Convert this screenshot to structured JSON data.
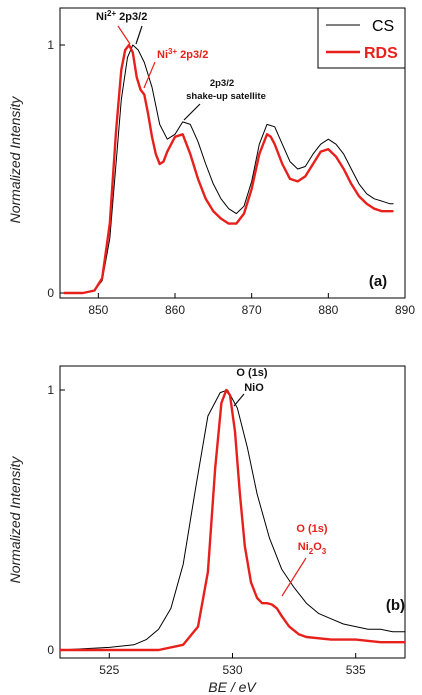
{
  "chart_data": [
    {
      "type": "line",
      "panel_label": "(a)",
      "ylabel": "Normalized Intensity",
      "xlim": [
        845,
        890
      ],
      "ylim": [
        0,
        1
      ],
      "x_ticks": [
        850,
        860,
        870,
        880,
        890
      ],
      "y_ticks": [
        0,
        1
      ],
      "legend": {
        "placement": "top-right",
        "entries": [
          "CS",
          "RDS"
        ]
      },
      "colors": {
        "CS": "#000000",
        "RDS": "#e8201c"
      },
      "series": [
        {
          "name": "CS",
          "x": [
            845.5,
            848,
            849.5,
            850.5,
            851.5,
            852.3,
            853,
            853.8,
            854.5,
            855.2,
            856,
            857,
            858,
            859,
            860,
            861,
            862,
            863,
            864,
            865,
            866,
            867,
            868,
            869,
            870,
            871,
            872,
            873,
            874,
            875,
            876,
            877,
            878,
            879,
            880,
            881,
            882,
            883,
            884,
            885,
            886,
            887,
            888,
            888.5
          ],
          "values": [
            0.0,
            0.0,
            0.01,
            0.05,
            0.22,
            0.52,
            0.78,
            0.95,
            1.0,
            0.98,
            0.93,
            0.83,
            0.68,
            0.62,
            0.64,
            0.69,
            0.68,
            0.61,
            0.52,
            0.44,
            0.38,
            0.34,
            0.32,
            0.35,
            0.45,
            0.6,
            0.68,
            0.67,
            0.6,
            0.53,
            0.5,
            0.51,
            0.56,
            0.6,
            0.62,
            0.6,
            0.56,
            0.5,
            0.44,
            0.4,
            0.38,
            0.37,
            0.36,
            0.36
          ]
        },
        {
          "name": "RDS",
          "x": [
            845.5,
            848,
            849.5,
            850.5,
            851.5,
            852.3,
            853,
            853.5,
            854,
            854.5,
            855,
            855.5,
            856,
            856.5,
            857,
            857.5,
            858,
            858.5,
            859,
            860,
            861,
            862,
            863,
            864,
            865,
            866,
            867,
            868,
            869,
            870,
            871,
            872,
            872.5,
            873,
            874,
            875,
            876,
            877,
            878,
            879,
            880,
            881,
            882,
            883,
            884,
            885,
            886,
            887,
            888,
            888.5
          ],
          "values": [
            0.0,
            0.0,
            0.01,
            0.06,
            0.28,
            0.65,
            0.9,
            0.98,
            1.0,
            0.97,
            0.87,
            0.82,
            0.8,
            0.72,
            0.63,
            0.56,
            0.52,
            0.53,
            0.57,
            0.63,
            0.64,
            0.56,
            0.46,
            0.38,
            0.33,
            0.3,
            0.28,
            0.28,
            0.32,
            0.42,
            0.56,
            0.64,
            0.63,
            0.6,
            0.52,
            0.46,
            0.45,
            0.47,
            0.52,
            0.57,
            0.58,
            0.55,
            0.5,
            0.44,
            0.39,
            0.36,
            0.34,
            0.33,
            0.33,
            0.33
          ]
        }
      ],
      "annotations": {
        "ni2_prefix": "Ni",
        "ni2_sup": "2+",
        "ni2_suffix": " 2p3/2",
        "ni3_prefix": "Ni",
        "ni3_sup": "3+",
        "ni3_suffix": " 2p3/2",
        "sat_line1": "2p3/2",
        "sat_line2": "shake-up satellite"
      }
    },
    {
      "type": "line",
      "panel_label": "(b)",
      "ylabel": "Normalized Intensity",
      "xlabel": "BE / eV",
      "xlim": [
        523,
        537
      ],
      "ylim": [
        0,
        1
      ],
      "x_ticks": [
        525,
        530,
        535
      ],
      "y_ticks": [
        0,
        1
      ],
      "colors": {
        "CS": "#000000",
        "RDS": "#e8201c"
      },
      "series": [
        {
          "name": "CS",
          "x": [
            523,
            525,
            526,
            526.5,
            527,
            527.5,
            528,
            528.5,
            529,
            529.5,
            529.8,
            530.2,
            530.6,
            531,
            531.5,
            532,
            532.5,
            533,
            533.5,
            534,
            534.5,
            535,
            535.5,
            536,
            536.5,
            537
          ],
          "values": [
            0.0,
            0.01,
            0.02,
            0.04,
            0.08,
            0.16,
            0.33,
            0.62,
            0.9,
            0.99,
            1.0,
            0.93,
            0.78,
            0.6,
            0.43,
            0.31,
            0.24,
            0.18,
            0.14,
            0.12,
            0.1,
            0.09,
            0.08,
            0.08,
            0.07,
            0.07
          ]
        },
        {
          "name": "RDS",
          "x": [
            523,
            526,
            527,
            528,
            528.6,
            529,
            529.3,
            529.55,
            529.75,
            529.9,
            530.1,
            530.3,
            530.5,
            530.75,
            531,
            531.2,
            531.4,
            531.6,
            531.8,
            532,
            532.3,
            532.7,
            533,
            534,
            535,
            536,
            537
          ],
          "values": [
            0.0,
            0.0,
            0.0,
            0.02,
            0.09,
            0.3,
            0.7,
            0.95,
            1.0,
            0.98,
            0.84,
            0.6,
            0.4,
            0.26,
            0.2,
            0.18,
            0.18,
            0.175,
            0.16,
            0.13,
            0.09,
            0.06,
            0.05,
            0.04,
            0.04,
            0.03,
            0.03
          ]
        }
      ],
      "annotations": {
        "o_nio_line1": "O (1s)",
        "o_nio_line2": "NiO",
        "o_ni2o3_line1": "O (1s)",
        "o_ni2o3_a": "Ni",
        "o_ni2o3_sub1": "2",
        "o_ni2o3_b": "O",
        "o_ni2o3_sub2": "3"
      }
    }
  ]
}
